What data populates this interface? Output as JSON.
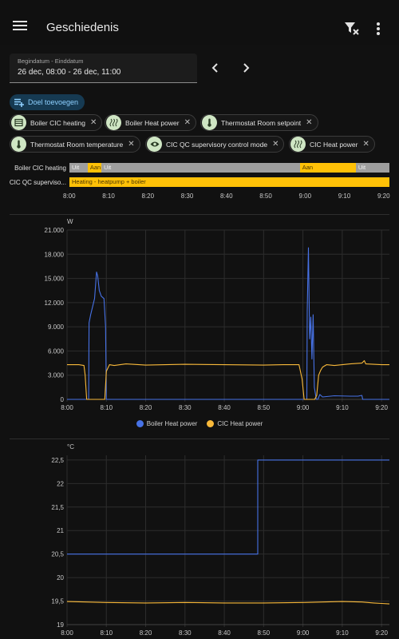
{
  "appbar": {
    "title": "Geschiedenis"
  },
  "date_range": {
    "label": "Begindatum - Einddatum",
    "value": "26 dec, 08:00 - 26 dec, 11:00"
  },
  "add_target": {
    "label": "Doel toevoegen"
  },
  "chips": [
    {
      "label": "Boiler CIC heating",
      "icon": "radiator-icon"
    },
    {
      "label": "Boiler Heat power",
      "icon": "heat-wave-icon"
    },
    {
      "label": "Thermostat Room setpoint",
      "icon": "thermometer-icon"
    },
    {
      "label": "Thermostat Room temperature",
      "icon": "thermometer-icon"
    },
    {
      "label": "CIC QC supervisory control mode",
      "icon": "eye-icon"
    },
    {
      "label": "CIC Heat power",
      "icon": "heat-wave-icon"
    }
  ],
  "timeline": {
    "rows": [
      {
        "label": "Boiler CIC heating",
        "segments": [
          {
            "text": "Uit",
            "start": 0,
            "end": 0.057,
            "state": "off"
          },
          {
            "text": "Aan",
            "start": 0.057,
            "end": 0.1,
            "state": "on"
          },
          {
            "text": "Uit",
            "start": 0.1,
            "end": 0.72,
            "state": "off"
          },
          {
            "text": "Aan",
            "start": 0.72,
            "end": 0.895,
            "state": "on"
          },
          {
            "text": "Uit",
            "start": 0.895,
            "end": 1,
            "state": "off"
          }
        ]
      },
      {
        "label": "CIC QC superviso...",
        "segments": [
          {
            "text": "Heating - heatpump + boiler",
            "start": 0,
            "end": 1,
            "state": "on"
          }
        ]
      }
    ],
    "ticks": [
      "8:00",
      "8:10",
      "8:20",
      "8:30",
      "8:40",
      "8:50",
      "9:00",
      "9:10",
      "9:20"
    ],
    "colors": {
      "on": "#ffc107",
      "off": "#9e9e9e"
    }
  },
  "power_chart": {
    "unit": "W",
    "y_ticks": [
      "0",
      "3.000",
      "6.000",
      "9.000",
      "12.000",
      "15.000",
      "18.000",
      "21.000"
    ],
    "x_ticks": [
      "8:00",
      "8:10",
      "8:20",
      "8:30",
      "8:40",
      "8:50",
      "9:00",
      "9:10",
      "9:20"
    ],
    "legend": [
      {
        "name": "Boiler Heat power",
        "color": "#4772e6"
      },
      {
        "name": "CIC Heat power",
        "color": "#f9b93a"
      }
    ]
  },
  "temp_chart": {
    "unit": "°C",
    "y_ticks": [
      "19",
      "19,5",
      "20",
      "20,5",
      "21",
      "21,5",
      "22",
      "22,5"
    ],
    "x_ticks": [
      "8:00",
      "8:10",
      "8:20",
      "8:30",
      "8:40",
      "8:50",
      "9:00",
      "9:10",
      "9:20"
    ]
  },
  "chart_data": [
    {
      "type": "line",
      "xlabel": "",
      "ylabel": "W",
      "ylim": [
        0,
        21000
      ],
      "x_unit": "minutes after 8:00",
      "xlim": [
        0,
        82
      ],
      "series": [
        {
          "name": "Boiler Heat power",
          "color": "#4772e6",
          "x": [
            0,
            5.5,
            5.6,
            6,
            7,
            7.5,
            7.8,
            8.2,
            8.7,
            9.4,
            9.8,
            10,
            10.5,
            10.7,
            61,
            61.1,
            61.4,
            61.7,
            62,
            62.3,
            62.6,
            62.9,
            63.4,
            63.8,
            64.3,
            65,
            68,
            72,
            74,
            75,
            75.2,
            82
          ],
          "y": [
            0,
            0,
            9500,
            10500,
            12500,
            15800,
            15300,
            13500,
            12800,
            12500,
            9000,
            0,
            0,
            0,
            0,
            11000,
            18800,
            7500,
            10200,
            5000,
            10500,
            1500,
            0,
            0,
            600,
            300,
            450,
            400,
            400,
            500,
            0,
            0
          ]
        },
        {
          "name": "CIC Heat power",
          "color": "#f9b93a",
          "x": [
            0,
            3,
            4.3,
            4.6,
            5,
            9.2,
            9.6,
            10,
            10.8,
            12,
            15,
            20,
            30,
            40,
            50,
            55,
            59,
            59.8,
            60.3,
            61.5,
            62.5,
            63,
            63.5,
            64,
            64.5,
            65,
            66,
            68,
            72,
            75,
            75.6,
            76,
            80,
            82
          ],
          "y": [
            4300,
            4300,
            4200,
            3000,
            0,
            0,
            0,
            3500,
            4300,
            4200,
            4400,
            4250,
            4350,
            4300,
            4250,
            4300,
            4300,
            2500,
            0,
            0,
            0,
            0,
            500,
            3000,
            3600,
            4000,
            4300,
            4200,
            4400,
            4500,
            4800,
            4400,
            4300,
            4300
          ]
        }
      ]
    },
    {
      "type": "line",
      "xlabel": "",
      "ylabel": "°C",
      "ylim": [
        19,
        22.6
      ],
      "x_unit": "minutes after 8:00",
      "xlim": [
        0,
        82
      ],
      "series": [
        {
          "name": "Thermostat Room setpoint",
          "color": "#4772e6",
          "x": [
            0,
            48.5,
            48.5,
            82
          ],
          "y": [
            20.5,
            20.5,
            22.5,
            22.5
          ]
        },
        {
          "name": "Thermostat Room temperature",
          "color": "#f9b93a",
          "x": [
            0,
            10,
            20,
            30,
            40,
            50,
            60,
            65,
            70,
            75,
            78,
            80,
            82
          ],
          "y": [
            19.49,
            19.47,
            19.46,
            19.47,
            19.46,
            19.46,
            19.47,
            19.48,
            19.49,
            19.48,
            19.46,
            19.45,
            19.44
          ]
        }
      ]
    }
  ]
}
